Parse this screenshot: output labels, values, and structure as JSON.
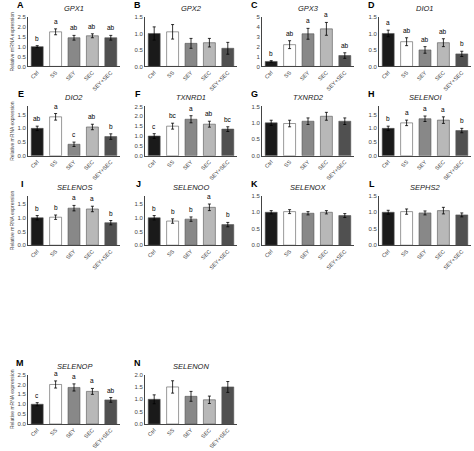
{
  "chart_data": [
    {
      "type": "bar",
      "title": "GPX1",
      "ylabel": "Relative mRNA expression",
      "categories": [
        "Ctrl",
        "SS",
        "SEY",
        "SEC",
        "SEY+SEC"
      ],
      "values": [
        1.0,
        1.75,
        1.45,
        1.55,
        1.45
      ],
      "errors": [
        0.05,
        0.15,
        0.12,
        0.1,
        0.12
      ],
      "colors": [
        "#1a1a1a",
        "#ffffff",
        "#888888",
        "#b8b8b8",
        "#505050"
      ],
      "ylim": [
        0,
        2.5
      ],
      "yticks": [
        {
          "value": 0,
          "label": "0.0"
        },
        0.5,
        {
          "value": 1,
          "label": "1.0"
        },
        1.5,
        {
          "value": 2,
          "label": "2.0"
        },
        2.5
      ],
      "grid": false,
      "annotations": [
        {
          "text": "A"
        },
        {
          "x": "Ctrl",
          "text": "b"
        },
        {
          "x": "SS",
          "text": "a"
        },
        {
          "x": "SEY",
          "text": "ab"
        },
        {
          "x": "SEC",
          "text": "ab"
        },
        {
          "x": "SEY+SEC",
          "text": "ab"
        }
      ]
    },
    {
      "type": "bar",
      "title": "GPX2",
      "categories": [
        "Ctrl",
        "SS",
        "SEY",
        "SEC",
        "SEY+SEC"
      ],
      "values": [
        1.0,
        1.05,
        0.7,
        0.72,
        0.55
      ],
      "errors": [
        0.2,
        0.22,
        0.15,
        0.13,
        0.18
      ],
      "colors": [
        "#1a1a1a",
        "#ffffff",
        "#888888",
        "#b8b8b8",
        "#505050"
      ],
      "ylim": [
        0,
        1.5
      ],
      "yticks": [
        {
          "value": 0,
          "label": "0.0"
        },
        0.5,
        {
          "value": 1,
          "label": "1.0"
        },
        1.5
      ],
      "grid": false,
      "annotations": [
        {
          "text": "B"
        }
      ]
    },
    {
      "type": "bar",
      "title": "GPX3",
      "categories": [
        "Ctrl",
        "SS",
        "SEY",
        "SEC",
        "SEY+SEC"
      ],
      "values": [
        0.5,
        2.2,
        3.3,
        3.8,
        1.1
      ],
      "errors": [
        0.08,
        0.4,
        0.55,
        0.65,
        0.28
      ],
      "colors": [
        "#1a1a1a",
        "#ffffff",
        "#888888",
        "#b8b8b8",
        "#505050"
      ],
      "ylim": [
        0,
        5
      ],
      "yticks": [
        0,
        1,
        2,
        3,
        4,
        5
      ],
      "grid": false,
      "annotations": [
        {
          "text": "C"
        },
        {
          "x": "Ctrl",
          "text": "b"
        },
        {
          "x": "SS",
          "text": "ab"
        },
        {
          "x": "SEY",
          "text": "a"
        },
        {
          "x": "SEC",
          "text": "a"
        },
        {
          "x": "SEY+SEC",
          "text": "ab"
        }
      ]
    },
    {
      "type": "bar",
      "title": "DIO1",
      "categories": [
        "Ctrl",
        "SS",
        "SEY",
        "SEC",
        "SEY+SEC"
      ],
      "values": [
        1.0,
        0.75,
        0.5,
        0.72,
        0.38
      ],
      "errors": [
        0.1,
        0.12,
        0.1,
        0.12,
        0.08
      ],
      "colors": [
        "#1a1a1a",
        "#ffffff",
        "#888888",
        "#b8b8b8",
        "#505050"
      ],
      "ylim": [
        0,
        1.5
      ],
      "yticks": [
        {
          "value": 0,
          "label": "0.0"
        },
        0.5,
        {
          "value": 1,
          "label": "1.0"
        },
        1.5
      ],
      "grid": false,
      "annotations": [
        {
          "text": "D"
        },
        {
          "x": "Ctrl",
          "text": "a"
        },
        {
          "x": "SS",
          "text": "ab"
        },
        {
          "x": "SEY",
          "text": "ab"
        },
        {
          "x": "SEC",
          "text": "ab"
        },
        {
          "x": "SEY+SEC",
          "text": "b"
        }
      ]
    },
    {
      "type": "bar",
      "title": "DIO2",
      "ylabel": "Relative mRNA expression",
      "categories": [
        "Ctrl",
        "SS",
        "SEY",
        "SEC",
        "SEY+SEC"
      ],
      "values": [
        1.0,
        1.42,
        0.42,
        1.05,
        0.7
      ],
      "errors": [
        0.08,
        0.12,
        0.08,
        0.1,
        0.1
      ],
      "colors": [
        "#1a1a1a",
        "#ffffff",
        "#888888",
        "#b8b8b8",
        "#505050"
      ],
      "ylim": [
        0,
        1.8
      ],
      "yticks": [
        {
          "value": 0,
          "label": "0.0"
        },
        0.5,
        {
          "value": 1,
          "label": "1.0"
        },
        1.5
      ],
      "grid": false,
      "annotations": [
        {
          "text": "E"
        },
        {
          "x": "Ctrl",
          "text": "ab"
        },
        {
          "x": "SS",
          "text": "a"
        },
        {
          "x": "SEY",
          "text": "c"
        },
        {
          "x": "SEC",
          "text": "ab"
        },
        {
          "x": "SEY+SEC",
          "text": "b"
        }
      ]
    },
    {
      "type": "bar",
      "title": "TXNRD1",
      "categories": [
        "Ctrl",
        "SS",
        "SEY",
        "SEC",
        "SEY+SEC"
      ],
      "values": [
        1.0,
        1.5,
        1.85,
        1.6,
        1.35
      ],
      "errors": [
        0.12,
        0.15,
        0.18,
        0.15,
        0.12
      ],
      "colors": [
        "#1a1a1a",
        "#ffffff",
        "#888888",
        "#b8b8b8",
        "#505050"
      ],
      "ylim": [
        0,
        2.5
      ],
      "yticks": [
        {
          "value": 0,
          "label": "0.0"
        },
        0.5,
        {
          "value": 1,
          "label": "1.0"
        },
        1.5,
        {
          "value": 2,
          "label": "2.0"
        },
        2.5
      ],
      "grid": false,
      "annotations": [
        {
          "text": "F"
        },
        {
          "x": "Ctrl",
          "text": "c"
        },
        {
          "x": "SS",
          "text": "bc"
        },
        {
          "x": "SEY",
          "text": "a"
        },
        {
          "x": "SEC",
          "text": "ab"
        },
        {
          "x": "SEY+SEC",
          "text": "bc"
        }
      ]
    },
    {
      "type": "bar",
      "title": "TXNRD2",
      "categories": [
        "Ctrl",
        "SS",
        "SEY",
        "SEC",
        "SEY+SEC"
      ],
      "values": [
        1.0,
        0.98,
        1.05,
        1.2,
        1.05
      ],
      "errors": [
        0.08,
        0.1,
        0.1,
        0.12,
        0.1
      ],
      "colors": [
        "#1a1a1a",
        "#ffffff",
        "#888888",
        "#b8b8b8",
        "#505050"
      ],
      "ylim": [
        0,
        1.5
      ],
      "yticks": [
        {
          "value": 0,
          "label": "0.0"
        },
        0.5,
        {
          "value": 1,
          "label": "1.0"
        },
        1.5
      ],
      "grid": false,
      "annotations": [
        {
          "text": "G"
        }
      ]
    },
    {
      "type": "bar",
      "title": "SELENOI",
      "categories": [
        "Ctrl",
        "SS",
        "SEY",
        "SEC",
        "SEY+SEC"
      ],
      "values": [
        1.0,
        1.2,
        1.35,
        1.3,
        0.92
      ],
      "errors": [
        0.08,
        0.1,
        0.1,
        0.12,
        0.08
      ],
      "colors": [
        "#1a1a1a",
        "#ffffff",
        "#888888",
        "#b8b8b8",
        "#505050"
      ],
      "ylim": [
        0,
        1.8
      ],
      "yticks": [
        {
          "value": 0,
          "label": "0.0"
        },
        0.5,
        {
          "value": 1,
          "label": "1.0"
        },
        1.5
      ],
      "grid": false,
      "annotations": [
        {
          "text": "H"
        },
        {
          "x": "Ctrl",
          "text": "b"
        },
        {
          "x": "SS",
          "text": "a"
        },
        {
          "x": "SEY",
          "text": "a"
        },
        {
          "x": "SEC",
          "text": "a"
        },
        {
          "x": "SEY+SEC",
          "text": "b"
        }
      ]
    },
    {
      "type": "bar",
      "title": "SELENOS",
      "ylabel": "Relative mRNA expression",
      "categories": [
        "Ctrl",
        "SS",
        "SEY",
        "SEC",
        "SEY+SEC"
      ],
      "values": [
        1.0,
        1.02,
        1.35,
        1.32,
        0.82
      ],
      "errors": [
        0.08,
        0.08,
        0.1,
        0.1,
        0.08
      ],
      "colors": [
        "#1a1a1a",
        "#ffffff",
        "#888888",
        "#b8b8b8",
        "#505050"
      ],
      "ylim": [
        0,
        1.8
      ],
      "yticks": [
        {
          "value": 0,
          "label": "0.0"
        },
        0.5,
        {
          "value": 1,
          "label": "1.0"
        },
        1.5
      ],
      "grid": false,
      "annotations": [
        {
          "text": "I"
        },
        {
          "x": "Ctrl",
          "text": "b"
        },
        {
          "x": "SS",
          "text": "b"
        },
        {
          "x": "SEY",
          "text": "a"
        },
        {
          "x": "SEC",
          "text": "a"
        },
        {
          "x": "SEY+SEC",
          "text": "b"
        }
      ]
    },
    {
      "type": "bar",
      "title": "SELENOO",
      "categories": [
        "Ctrl",
        "SS",
        "SEY",
        "SEC",
        "SEY+SEC"
      ],
      "values": [
        1.0,
        0.88,
        0.95,
        1.38,
        0.75
      ],
      "errors": [
        0.08,
        0.08,
        0.08,
        0.12,
        0.08
      ],
      "colors": [
        "#1a1a1a",
        "#ffffff",
        "#888888",
        "#b8b8b8",
        "#505050"
      ],
      "ylim": [
        0,
        1.8
      ],
      "yticks": [
        {
          "value": 0,
          "label": "0.0"
        },
        0.5,
        {
          "value": 1,
          "label": "1.0"
        },
        1.5
      ],
      "grid": false,
      "annotations": [
        {
          "text": "J"
        },
        {
          "x": "Ctrl",
          "text": "b"
        },
        {
          "x": "SS",
          "text": "b"
        },
        {
          "x": "SEY",
          "text": "b"
        },
        {
          "x": "SEC",
          "text": "a"
        },
        {
          "x": "SEY+SEC",
          "text": "b"
        }
      ]
    },
    {
      "type": "bar",
      "title": "SELENOX",
      "categories": [
        "Ctrl",
        "SS",
        "SEY",
        "SEC",
        "SEY+SEC"
      ],
      "values": [
        1.0,
        1.02,
        0.97,
        1.0,
        0.9
      ],
      "errors": [
        0.05,
        0.06,
        0.05,
        0.05,
        0.06
      ],
      "colors": [
        "#1a1a1a",
        "#ffffff",
        "#888888",
        "#b8b8b8",
        "#505050"
      ],
      "ylim": [
        0,
        1.5
      ],
      "yticks": [
        {
          "value": 0,
          "label": "0.0"
        },
        0.5,
        {
          "value": 1,
          "label": "1.0"
        },
        1.5
      ],
      "grid": false,
      "annotations": [
        {
          "text": "K"
        }
      ]
    },
    {
      "type": "bar",
      "title": "SEPHS2",
      "categories": [
        "Ctrl",
        "SS",
        "SEY",
        "SEC",
        "SEY+SEC"
      ],
      "values": [
        1.0,
        1.02,
        0.98,
        1.05,
        0.92
      ],
      "errors": [
        0.06,
        0.08,
        0.06,
        0.1,
        0.06
      ],
      "colors": [
        "#1a1a1a",
        "#ffffff",
        "#888888",
        "#b8b8b8",
        "#505050"
      ],
      "ylim": [
        0,
        1.5
      ],
      "yticks": [
        {
          "value": 0,
          "label": "0.0"
        },
        0.5,
        {
          "value": 1,
          "label": "1.0"
        },
        1.5
      ],
      "grid": false,
      "annotations": [
        {
          "text": "L"
        }
      ]
    },
    {
      "type": "bar",
      "title": "SELENOP",
      "ylabel": "Relative mRNA expression",
      "categories": [
        "Ctrl",
        "SS",
        "SEY",
        "SEC",
        "SEY+SEC"
      ],
      "values": [
        1.0,
        2.0,
        1.85,
        1.65,
        1.22
      ],
      "errors": [
        0.08,
        0.18,
        0.18,
        0.15,
        0.12
      ],
      "colors": [
        "#1a1a1a",
        "#ffffff",
        "#888888",
        "#b8b8b8",
        "#505050"
      ],
      "ylim": [
        0,
        2.5
      ],
      "yticks": [
        {
          "value": 0,
          "label": "0.0"
        },
        0.5,
        {
          "value": 1,
          "label": "1.0"
        },
        1.5,
        {
          "value": 2,
          "label": "2.0"
        },
        2.5
      ],
      "grid": false,
      "annotations": [
        {
          "text": "M"
        },
        {
          "x": "Ctrl",
          "text": "c"
        },
        {
          "x": "SS",
          "text": "a"
        },
        {
          "x": "SEY",
          "text": "a"
        },
        {
          "x": "SEC",
          "text": "a"
        },
        {
          "x": "SEY+SEC",
          "text": "ab"
        }
      ]
    },
    {
      "type": "bar",
      "title": "SELENON",
      "categories": [
        "Ctrl",
        "SS",
        "SEY",
        "SEC",
        "SEY+SEC"
      ],
      "values": [
        1.0,
        1.5,
        1.12,
        0.98,
        1.5
      ],
      "errors": [
        0.18,
        0.25,
        0.2,
        0.15,
        0.22
      ],
      "colors": [
        "#1a1a1a",
        "#ffffff",
        "#888888",
        "#b8b8b8",
        "#505050"
      ],
      "ylim": [
        0,
        2.0
      ],
      "yticks": [
        {
          "value": 0,
          "label": "0.0"
        },
        0.5,
        {
          "value": 1,
          "label": "1.0"
        },
        1.5,
        {
          "value": 2,
          "label": "2.0"
        }
      ],
      "grid": false,
      "annotations": [
        {
          "text": "N"
        }
      ]
    }
  ]
}
